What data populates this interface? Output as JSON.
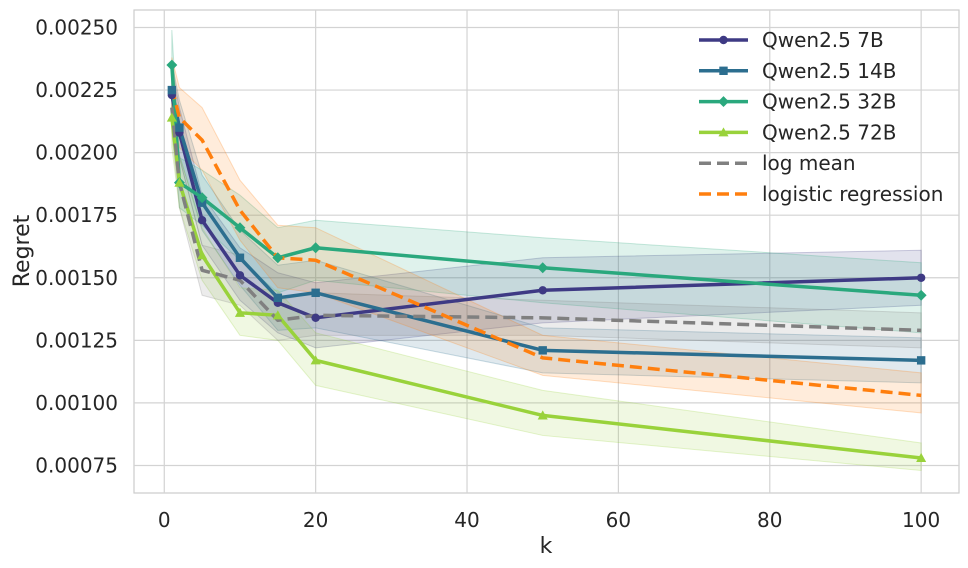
{
  "chart_data": {
    "type": "line",
    "title": "",
    "xlabel": "k",
    "ylabel": "Regret",
    "xlim": [
      -4,
      105
    ],
    "ylim": [
      0.00064,
      0.00257
    ],
    "xticks": [
      0,
      20,
      40,
      60,
      80,
      100
    ],
    "xtick_labels": [
      "0",
      "20",
      "40",
      "60",
      "80",
      "100"
    ],
    "yticks": [
      0.00075,
      0.001,
      0.00125,
      0.0015,
      0.00175,
      0.002,
      0.00225,
      0.0025
    ],
    "ytick_labels": [
      "0.00075",
      "0.00100",
      "0.00125",
      "0.00150",
      "0.00175",
      "0.00200",
      "0.00225",
      "0.00250"
    ],
    "grid": true,
    "legend_position": "top-right",
    "x": [
      1,
      2,
      5,
      10,
      15,
      20,
      50,
      100
    ],
    "series": [
      {
        "name": "Qwen2.5 7B",
        "color": "#3e3a84",
        "marker": "circle",
        "dashed": false,
        "values": [
          0.00223,
          0.00208,
          0.00173,
          0.00151,
          0.0014,
          0.00134,
          0.00145,
          0.0015
        ],
        "lower": [
          0.00212,
          0.00198,
          0.00163,
          0.00141,
          0.00128,
          0.00122,
          0.00132,
          0.00139
        ],
        "upper": [
          0.00234,
          0.00218,
          0.00183,
          0.00162,
          0.00152,
          0.00148,
          0.00158,
          0.00161
        ]
      },
      {
        "name": "Qwen2.5 14B",
        "color": "#2c6e8f",
        "marker": "square",
        "dashed": false,
        "values": [
          0.00225,
          0.0021,
          0.0018,
          0.00158,
          0.00142,
          0.00144,
          0.00121,
          0.00117
        ],
        "lower": [
          0.00214,
          0.00199,
          0.00169,
          0.00147,
          0.00129,
          0.0013,
          0.00112,
          0.00108
        ],
        "upper": [
          0.00236,
          0.00221,
          0.00191,
          0.00169,
          0.00155,
          0.00157,
          0.0013,
          0.00126
        ]
      },
      {
        "name": "Qwen2.5 32B",
        "color": "#2aa87d",
        "marker": "diamond",
        "dashed": false,
        "values": [
          0.00235,
          0.00188,
          0.00182,
          0.0017,
          0.00158,
          0.00162,
          0.00154,
          0.00143
        ],
        "lower": [
          0.00221,
          0.00178,
          0.00171,
          0.00157,
          0.00144,
          0.00149,
          0.0014,
          0.00128
        ],
        "upper": [
          0.00249,
          0.00198,
          0.00193,
          0.00183,
          0.0017,
          0.00173,
          0.00166,
          0.00156
        ]
      },
      {
        "name": "Qwen2.5 72B",
        "color": "#99d23b",
        "marker": "triangle",
        "dashed": false,
        "values": [
          0.00214,
          0.00188,
          0.00159,
          0.00136,
          0.00135,
          0.00117,
          0.00095,
          0.00078
        ],
        "lower": [
          0.00202,
          0.00178,
          0.00149,
          0.00127,
          0.00125,
          0.00107,
          0.00087,
          0.00073
        ],
        "upper": [
          0.00226,
          0.00199,
          0.0017,
          0.00146,
          0.00145,
          0.00128,
          0.00105,
          0.00084
        ]
      },
      {
        "name": "log mean",
        "color": "#808080",
        "marker": "none",
        "dashed": true,
        "values": [
          0.00218,
          0.00188,
          0.00153,
          0.00149,
          0.00133,
          0.00135,
          0.00134,
          0.00129
        ],
        "lower": [
          0.00208,
          0.00178,
          0.00143,
          0.00139,
          0.00125,
          0.00127,
          0.00127,
          0.00122
        ],
        "upper": [
          0.00228,
          0.00198,
          0.00163,
          0.00159,
          0.00141,
          0.00144,
          0.00141,
          0.00136
        ]
      },
      {
        "name": "logistic regression",
        "color": "#ff7f0e",
        "marker": "none",
        "dashed": true,
        "values": [
          0.00226,
          0.00214,
          0.00205,
          0.00177,
          0.00158,
          0.00157,
          0.00118,
          0.00103
        ],
        "lower": [
          0.00214,
          0.00202,
          0.00193,
          0.00165,
          0.00146,
          0.00144,
          0.00111,
          0.00096
        ],
        "upper": [
          0.00238,
          0.00226,
          0.00218,
          0.00189,
          0.00171,
          0.0017,
          0.00127,
          0.00112
        ]
      }
    ]
  }
}
